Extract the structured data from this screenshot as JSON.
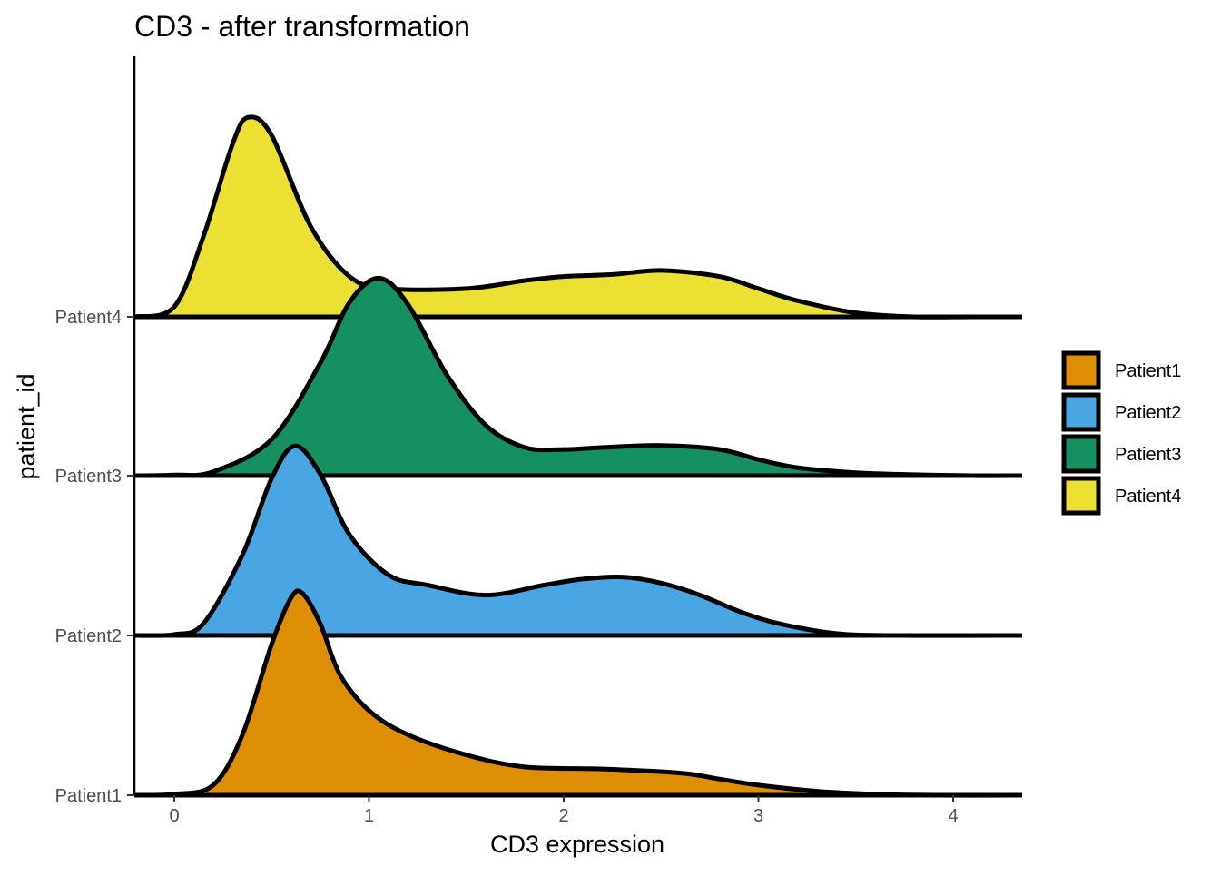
{
  "chart_data": {
    "type": "ridgeline",
    "title": "CD3 - after transformation",
    "xlabel": "CD3 expression",
    "ylabel": "patient_id",
    "xlim": [
      -0.2,
      4.33
    ],
    "x_ticks": [
      0,
      1,
      2,
      3,
      4
    ],
    "categories": [
      "Patient1",
      "Patient2",
      "Patient3",
      "Patient4"
    ],
    "grid": false,
    "legend_position": "right",
    "legend": [
      "Patient1",
      "Patient2",
      "Patient3",
      "Patient4"
    ],
    "series": [
      {
        "name": "Patient1",
        "color": "#DE8F05",
        "x": [
          -0.2,
          0.0,
          0.2,
          0.35,
          0.5,
          0.6,
          0.66,
          0.75,
          0.85,
          1.0,
          1.2,
          1.5,
          1.8,
          2.2,
          2.6,
          2.8,
          3.0,
          3.3,
          3.6,
          3.9,
          4.33
        ],
        "y": [
          0.0,
          0.005,
          0.05,
          0.3,
          0.75,
          0.98,
          1.0,
          0.85,
          0.6,
          0.42,
          0.3,
          0.2,
          0.14,
          0.13,
          0.11,
          0.08,
          0.05,
          0.02,
          0.005,
          0.0,
          0.0
        ]
      },
      {
        "name": "Patient2",
        "color": "#4AA5E3",
        "x": [
          -0.2,
          0.0,
          0.15,
          0.35,
          0.5,
          0.62,
          0.75,
          0.9,
          1.1,
          1.3,
          1.6,
          1.9,
          2.1,
          2.3,
          2.5,
          2.7,
          2.9,
          3.1,
          3.4,
          3.7,
          4.33
        ],
        "y": [
          0.0,
          0.005,
          0.06,
          0.4,
          0.78,
          0.94,
          0.8,
          0.5,
          0.3,
          0.25,
          0.2,
          0.25,
          0.28,
          0.29,
          0.26,
          0.2,
          0.12,
          0.06,
          0.01,
          0.0,
          0.0
        ]
      },
      {
        "name": "Patient3",
        "color": "#159060",
        "x": [
          -0.2,
          0.0,
          0.2,
          0.5,
          0.75,
          0.9,
          1.05,
          1.2,
          1.4,
          1.6,
          1.8,
          2.0,
          2.2,
          2.5,
          2.8,
          3.0,
          3.2,
          3.5,
          3.8,
          4.1,
          4.33
        ],
        "y": [
          0.0,
          0.003,
          0.02,
          0.18,
          0.56,
          0.86,
          0.98,
          0.85,
          0.5,
          0.25,
          0.14,
          0.13,
          0.14,
          0.15,
          0.13,
          0.08,
          0.04,
          0.015,
          0.005,
          0.0,
          0.0
        ]
      },
      {
        "name": "Patient4",
        "color": "#ECE133",
        "x": [
          -0.2,
          0.0,
          0.15,
          0.3,
          0.38,
          0.5,
          0.7,
          0.9,
          1.1,
          1.5,
          1.8,
          2.0,
          2.25,
          2.5,
          2.8,
          3.0,
          3.2,
          3.5,
          3.8,
          4.1,
          4.33
        ],
        "y": [
          0.0,
          0.05,
          0.4,
          0.86,
          0.99,
          0.9,
          0.45,
          0.2,
          0.14,
          0.14,
          0.18,
          0.2,
          0.21,
          0.23,
          0.2,
          0.14,
          0.08,
          0.02,
          0.0,
          0.0,
          0.0
        ]
      }
    ]
  }
}
